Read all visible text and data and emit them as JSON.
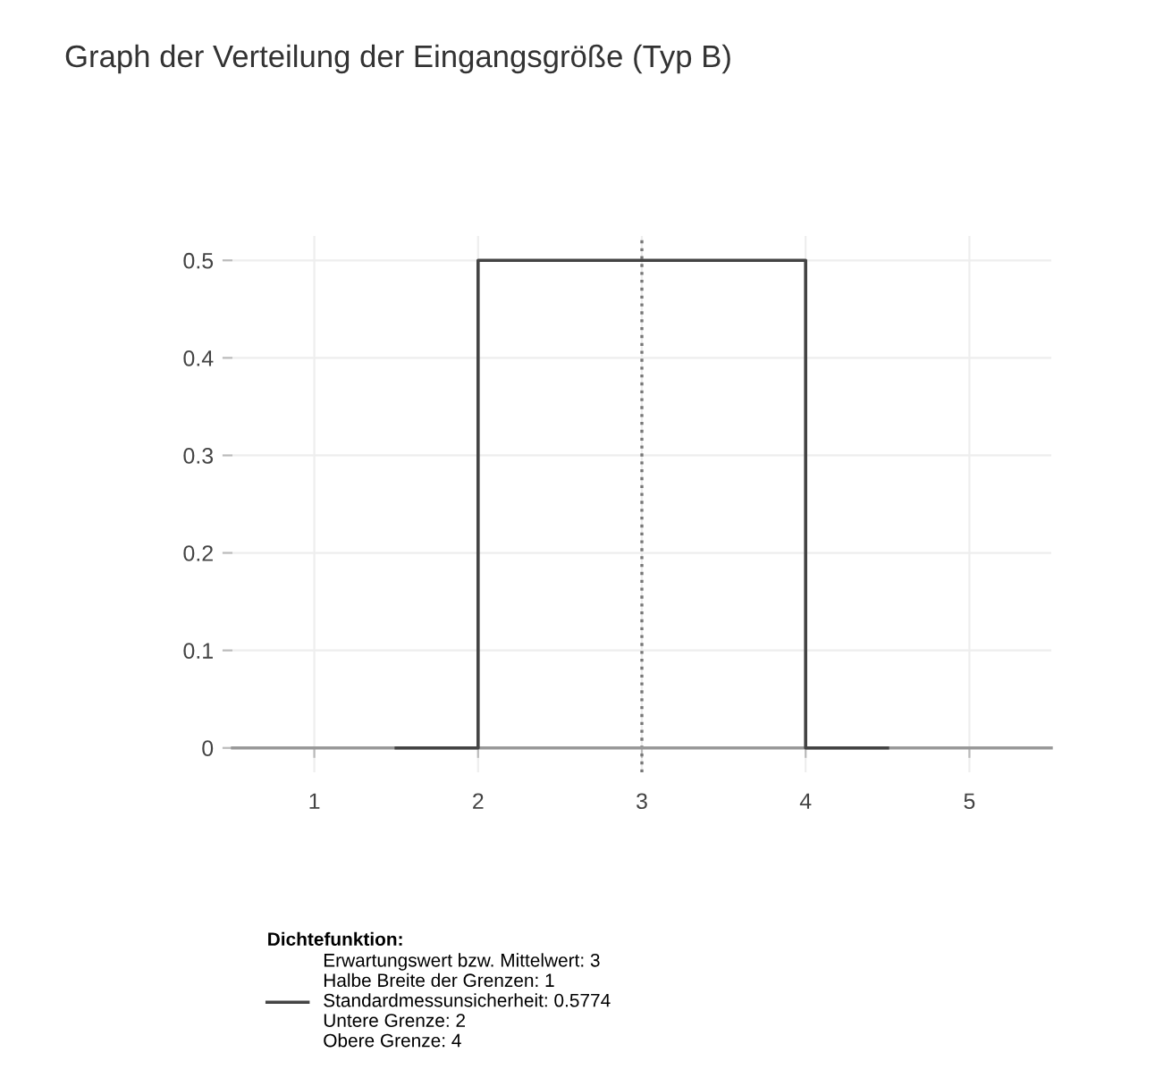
{
  "chart_data": {
    "type": "line",
    "title": "Graph der Verteilung der Eingangsgröße (Typ B)",
    "x": [
      1.5,
      2,
      2,
      4,
      4,
      4.5
    ],
    "series": [
      {
        "name": "Erwartungswert bzw. Mittelwert: 3\nHalbe Breite der Grenzen: 1\nStandardmessunsicherheit: 0.5774\nUntere Grenze: 2\nObere Grenze: 4",
        "color": "#444444",
        "values": [
          0,
          0,
          0.5,
          0.5,
          0,
          0
        ]
      }
    ],
    "legend_title": "Dichtefunktion:",
    "legend": "bottom",
    "xlim": [
      0.5,
      5.5
    ],
    "xticks": [
      1,
      2,
      3,
      4,
      5
    ],
    "ylim": [
      -0.025,
      0.525
    ],
    "yticks": [
      0,
      0.1,
      0.2,
      0.3,
      0.4,
      0.5
    ],
    "grid": true,
    "marker": "none",
    "line_style": "solid",
    "ref_lines": [
      {
        "axis": "x",
        "value": 3,
        "color": "#777777",
        "line_style": "dotted"
      }
    ]
  }
}
